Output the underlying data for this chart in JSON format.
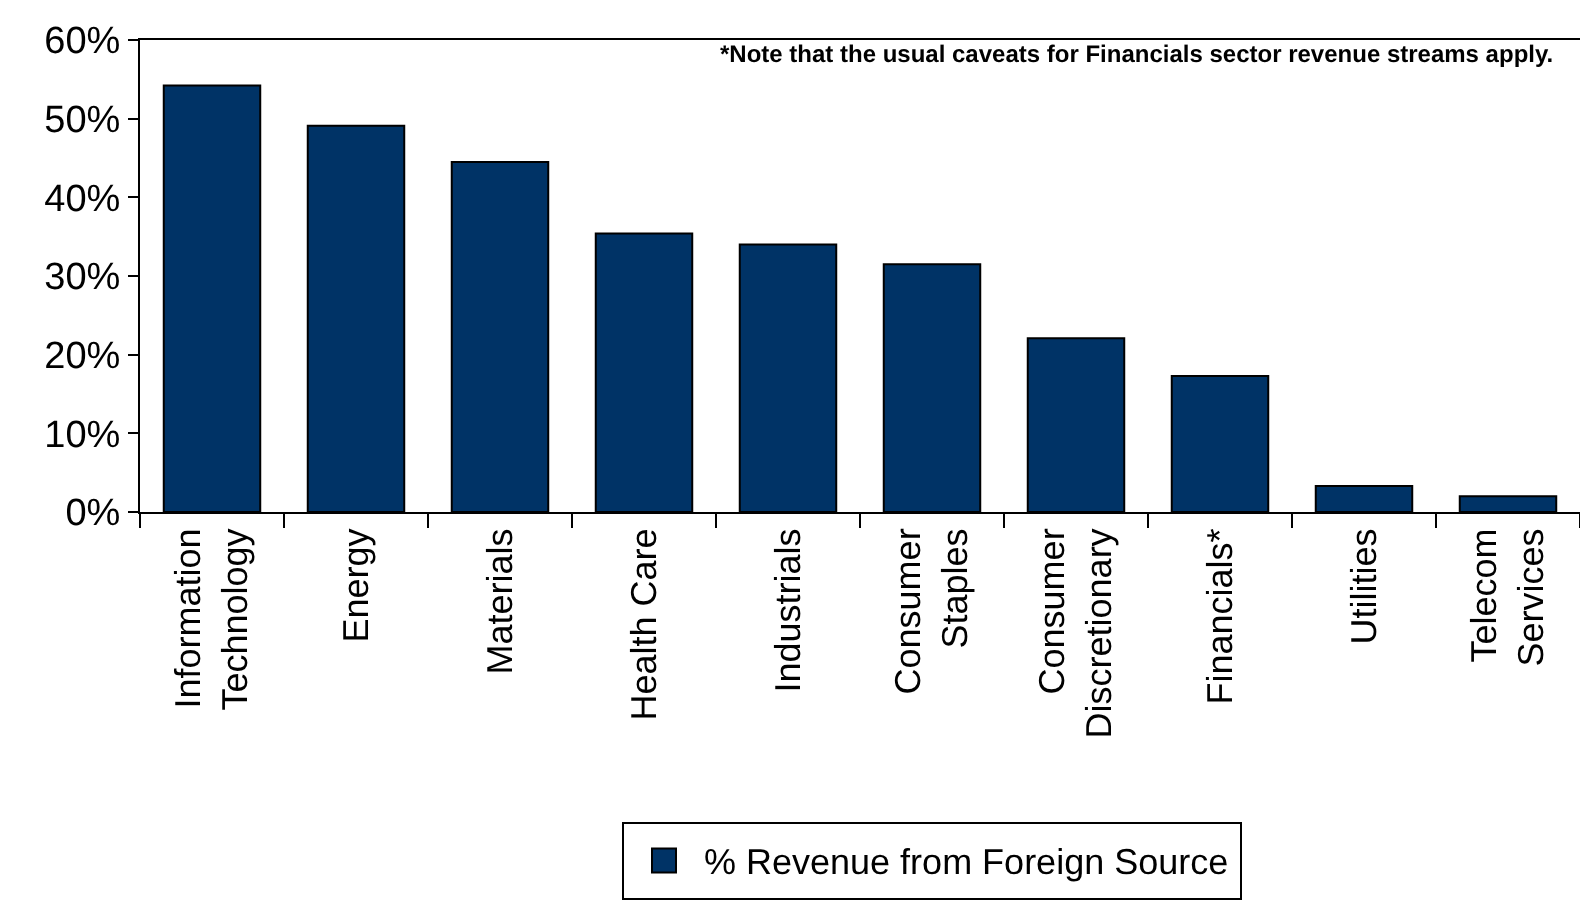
{
  "chart_data": {
    "type": "bar",
    "categories": [
      "Information Technology",
      "Energy",
      "Materials",
      "Health Care",
      "Industrials",
      "Consumer Staples",
      "Consumer Discretionary",
      "Financials*",
      "Utilities",
      "Telecom Services"
    ],
    "series": [
      {
        "name": "% Revenue from Foreign Source",
        "color": "#003366",
        "values": [
          54.2,
          49.1,
          44.5,
          35.4,
          34.0,
          31.5,
          22.1,
          17.3,
          3.3,
          2.0
        ]
      }
    ],
    "ylim": [
      0,
      60
    ],
    "yticks": [
      {
        "value": 0,
        "label": "0%"
      },
      {
        "value": 10,
        "label": "10%"
      },
      {
        "value": 20,
        "label": "20%"
      },
      {
        "value": 30,
        "label": "30%"
      },
      {
        "value": 40,
        "label": "40%"
      },
      {
        "value": 50,
        "label": "50%"
      },
      {
        "value": 60,
        "label": "60%"
      }
    ],
    "legend": "bottom",
    "annotations": [
      "*Note that the usual caveats for Financials sector revenue streams apply."
    ]
  }
}
